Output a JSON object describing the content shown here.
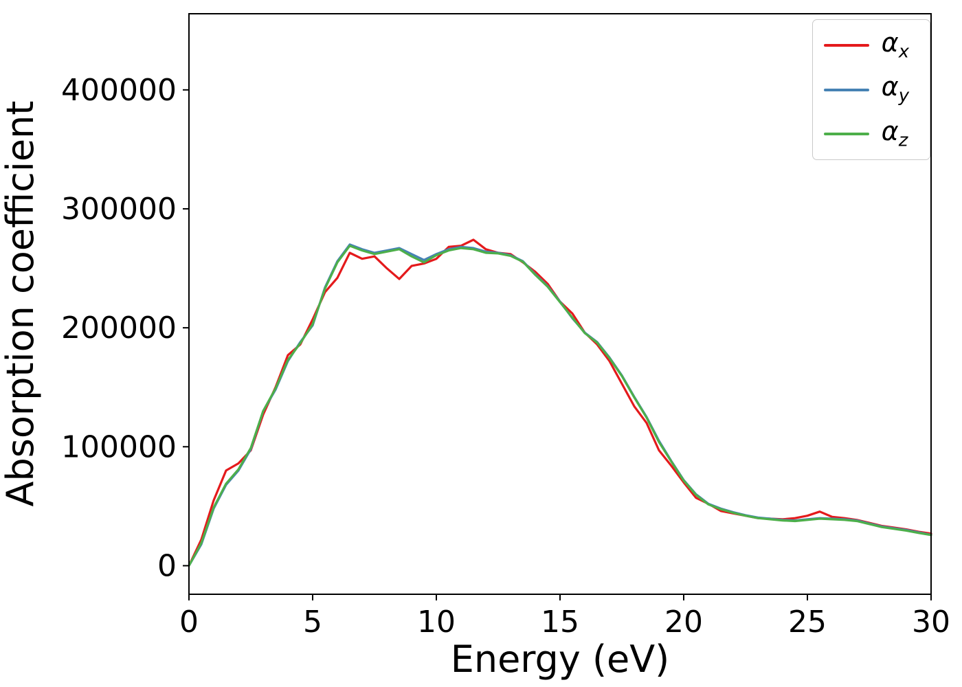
{
  "figure": {
    "background": "#ffffff"
  },
  "chart_data": {
    "type": "line",
    "title": "",
    "xlabel": "Energy (eV)",
    "ylabel": "Absorption coefficient",
    "xlim": [
      0,
      30
    ],
    "ylim": [
      -24000,
      464000
    ],
    "xticks": [
      0,
      5,
      10,
      15,
      20,
      25,
      30
    ],
    "yticks": [
      0,
      100000,
      200000,
      300000,
      400000
    ],
    "grid": false,
    "legend_position": "upper right",
    "x": [
      0,
      0.5,
      1,
      1.5,
      2,
      2.5,
      3,
      3.5,
      4,
      4.5,
      5,
      5.5,
      6,
      6.5,
      7,
      7.5,
      8,
      8.5,
      9,
      9.5,
      10,
      10.5,
      11,
      11.5,
      12,
      12.5,
      13,
      13.5,
      14,
      14.5,
      15,
      15.5,
      16,
      16.5,
      17,
      17.5,
      18,
      18.5,
      19,
      19.5,
      20,
      20.5,
      21,
      21.5,
      22,
      22.5,
      23,
      23.5,
      24,
      24.5,
      25,
      25.5,
      26,
      26.5,
      27,
      27.5,
      28,
      28.5,
      29,
      29.5,
      30
    ],
    "series": [
      {
        "name": "alpha_x",
        "symbol": "α",
        "sub": "x",
        "color": "#e41a1c",
        "values": [
          0,
          22000,
          55000,
          80000,
          86000,
          97000,
          127000,
          150000,
          177000,
          186000,
          207000,
          230000,
          242000,
          263000,
          258000,
          260000,
          250000,
          241000,
          252000,
          254000,
          258000,
          268000,
          269000,
          274000,
          266000,
          263000,
          262000,
          255000,
          247000,
          237000,
          222000,
          212000,
          196000,
          186000,
          172000,
          153000,
          134000,
          120000,
          97000,
          84000,
          70000,
          57000,
          52000,
          46000,
          44000,
          42000,
          40000,
          39500,
          39000,
          40000,
          42000,
          45500,
          41000,
          40000,
          38500,
          36000,
          33500,
          32000,
          30500,
          28500,
          27000
        ]
      },
      {
        "name": "alpha_y",
        "symbol": "α",
        "sub": "y",
        "color": "#4682b4",
        "values": [
          0,
          18000,
          48000,
          68000,
          80000,
          98000,
          130000,
          148000,
          172000,
          188000,
          202000,
          234000,
          256000,
          270000,
          266000,
          263000,
          265000,
          267000,
          262000,
          257000,
          262000,
          266000,
          268000,
          267000,
          264000,
          263000,
          261000,
          256000,
          245000,
          235000,
          222000,
          208000,
          196000,
          188000,
          175000,
          160000,
          142000,
          125000,
          105000,
          88000,
          72000,
          60000,
          52000,
          48000,
          45000,
          42500,
          40500,
          39500,
          38500,
          38000,
          39000,
          40000,
          39500,
          39000,
          38000,
          35500,
          33000,
          31500,
          30000,
          28000,
          26000
        ]
      },
      {
        "name": "alpha_z",
        "symbol": "α",
        "sub": "z",
        "color": "#4daf4a",
        "values": [
          0,
          19000,
          49000,
          69000,
          81000,
          99000,
          130000,
          149000,
          173000,
          187000,
          203000,
          233000,
          255000,
          269000,
          265000,
          262000,
          264000,
          266000,
          260000,
          255000,
          261000,
          265000,
          267000,
          266000,
          263000,
          262500,
          260500,
          255500,
          244500,
          234500,
          221500,
          208500,
          195500,
          187500,
          174500,
          159500,
          141500,
          124500,
          104000,
          87500,
          71500,
          59500,
          51500,
          47500,
          44500,
          42000,
          40000,
          39000,
          38000,
          37500,
          38500,
          39500,
          39000,
          38500,
          37500,
          35000,
          32500,
          31000,
          29500,
          27500,
          25800
        ]
      }
    ]
  }
}
